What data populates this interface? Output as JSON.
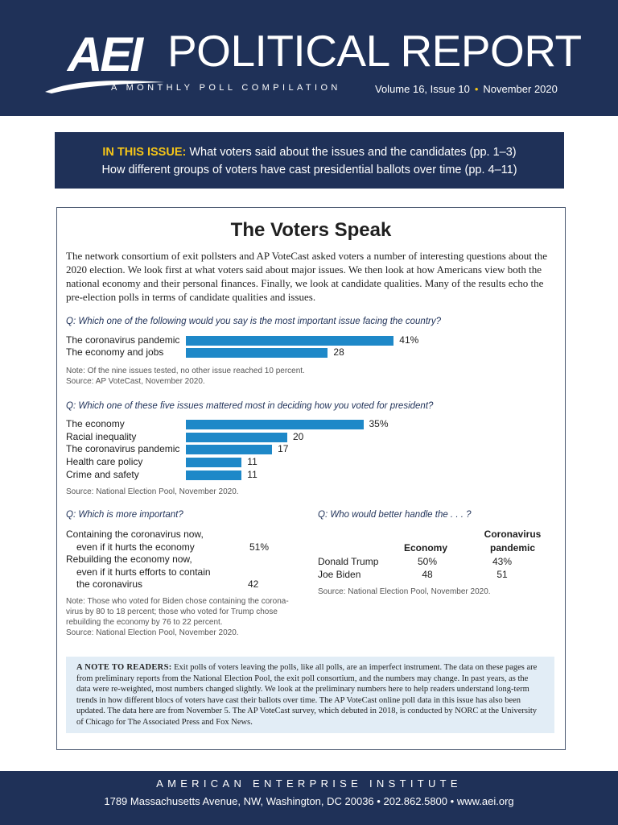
{
  "header": {
    "logo": "AEI",
    "title": "POLITICAL REPORT",
    "subtitle": "A MONTHLY POLL COMPILATION",
    "volume": "Volume 16, Issue 10",
    "date": "November 2020"
  },
  "issue": {
    "label": "IN THIS ISSUE:",
    "line1": "What voters said about the issues and the candidates (pp. 1–3)",
    "line2": "How different groups of voters have cast presidential ballots over time (pp. 4–11)"
  },
  "article": {
    "title": "The Voters Speak",
    "intro": "The network consortium of exit pollsters and AP VoteCast asked voters a number of interesting questions about the 2020 election. We look first at what voters said about major issues. We then look at how Americans view both the national economy and their personal finances. Finally, we look at candidate qualities. Many of the results echo the pre-election polls in terms of candidate qualities and issues."
  },
  "chart_data": [
    {
      "type": "bar",
      "title": "Q: Which one of the following would you say is the most important issue facing the country?",
      "categories": [
        "The coronavirus pandemic",
        "The economy and jobs"
      ],
      "values": [
        41,
        28
      ],
      "labels": [
        "41%",
        "28"
      ],
      "note": "Note: Of the nine issues tested, no other issue reached 10 percent.",
      "source": "Source: AP VoteCast, November 2020."
    },
    {
      "type": "bar",
      "title": "Q: Which one of these five issues mattered most in deciding how you voted for president?",
      "categories": [
        "The economy",
        "Racial inequality",
        "The coronavirus pandemic",
        "Health care policy",
        "Crime and safety"
      ],
      "values": [
        35,
        20,
        17,
        11,
        11
      ],
      "labels": [
        "35%",
        "20",
        "17",
        "11",
        "11"
      ],
      "source": "Source: National Election Pool, November 2020."
    },
    {
      "type": "table",
      "title": "Q: Which is more important?",
      "rows": [
        {
          "lines": [
            "Containing the coronavirus now,",
            "even if it hurts the economy"
          ],
          "value": "51%"
        },
        {
          "lines": [
            "Rebuilding the economy now,",
            "even if it hurts efforts to contain",
            "the coronavirus"
          ],
          "value": "42"
        }
      ],
      "note_lines": [
        "Note: Those who voted for Biden chose containing the corona-",
        "virus by 80 to 18 percent; those who voted for Trump chose",
        "rebuilding the economy by 76 to 22 percent.",
        "Source: National Election Pool, November 2020."
      ]
    },
    {
      "type": "table",
      "title": "Q: Who would better handle the . . . ?",
      "columns": [
        "Economy",
        "Coronavirus pandemic"
      ],
      "column_lines": [
        [
          "Economy"
        ],
        [
          "Coronavirus",
          "pandemic"
        ]
      ],
      "rows": [
        {
          "label": "Donald Trump",
          "values": [
            "50%",
            "43%"
          ]
        },
        {
          "label": "Joe Biden",
          "values": [
            "48",
            "51"
          ]
        }
      ],
      "source": "Source: National Election Pool, November 2020."
    }
  ],
  "reader_note": {
    "label": "A NOTE TO READERS:",
    "text": "Exit polls of voters leaving the polls, like all polls, are an imperfect instrument. The data on these pages are from preliminary reports from the National Election Pool, the exit poll consortium, and the numbers may change. In past years, as the data were re-weighted, most numbers changed slightly. We look at the preliminary numbers here to help readers understand long-term trends in how different blocs of voters have cast their ballots over time. The AP VoteCast online poll data in this issue has also been updated. The data here are from November 5. The AP VoteCast survey, which debuted in 2018, is conducted by NORC at the University of Chicago for The Associated Press and Fox News."
  },
  "footer": {
    "org": "AMERICAN ENTERPRISE INSTITUTE",
    "address": "1789 Massachusetts Avenue, NW, Washington, DC 20036",
    "phone": "202.862.5800",
    "web": "www.aei.org",
    "separator": "•"
  },
  "colors": {
    "navy": "#1f3158",
    "accent": "#f5c518",
    "bar": "#1e88c8",
    "note_bg": "#e2edf6"
  }
}
